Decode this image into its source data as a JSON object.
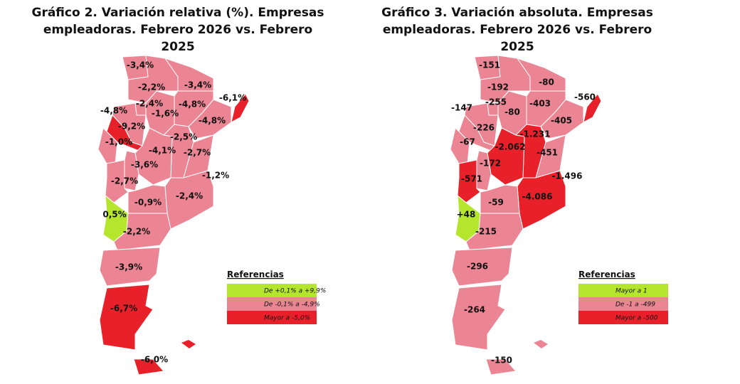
{
  "maps": [
    {
      "title": "Gráfico 2. Variación relativa (%). Empresas empleadoras. Febrero 2026 vs. Febrero 2025",
      "regions": [
        {
          "label": "-3,4%",
          "color": "#eb8493"
        },
        {
          "label": "-2,2%",
          "color": "#eb8493"
        },
        {
          "label": "-3,4%",
          "color": "#eb8493"
        },
        {
          "label": "-6,1%",
          "color": "#e8202a"
        },
        {
          "label": "-2,4%",
          "color": "#eb8493"
        },
        {
          "label": "-4,8%",
          "color": "#eb8493"
        },
        {
          "label": "-1,6%",
          "color": "#eb8493"
        },
        {
          "label": "-4,8%",
          "color": "#eb8493"
        },
        {
          "label": "-4,8%",
          "color": "#eb8493"
        },
        {
          "label": "-9,2%",
          "color": "#e8202a"
        },
        {
          "label": "-2,5%",
          "color": "#eb8493"
        },
        {
          "label": "-1,0%",
          "color": "#eb8493"
        },
        {
          "label": "-4,1%",
          "color": "#eb8493"
        },
        {
          "label": "-2,7%",
          "color": "#eb8493"
        },
        {
          "label": "-3,6%",
          "color": "#eb8493"
        },
        {
          "label": "-1,2%",
          "color": "#eb8493"
        },
        {
          "label": "-2,7%",
          "color": "#eb8493"
        },
        {
          "label": "-2,4%",
          "color": "#eb8493"
        },
        {
          "label": "-0,9%",
          "color": "#eb8493"
        },
        {
          "label": "0,5%",
          "color": "#b5e62d"
        },
        {
          "label": "-2,2%",
          "color": "#eb8493"
        },
        {
          "label": "-3,9%",
          "color": "#eb8493"
        },
        {
          "label": "-6,7%",
          "color": "#e8202a"
        },
        {
          "label": "-6,0%",
          "color": "#e8202a"
        }
      ],
      "legend": {
        "title": "Referencias",
        "items": [
          {
            "label": "De +0,1% a +9,9%",
            "color": "#b5e62d"
          },
          {
            "label": "De -0,1% a -4,9%",
            "color": "#eb8493"
          },
          {
            "label": "Mayor a -5,0%",
            "color": "#e8202a"
          }
        ]
      }
    },
    {
      "title": "Gráfico 3. Variación absoluta. Empresas empleadoras. Febrero 2026 vs. Febrero 2025",
      "regions": [
        {
          "label": "-151",
          "color": "#eb8493"
        },
        {
          "label": "-192",
          "color": "#eb8493"
        },
        {
          "label": "-80",
          "color": "#eb8493"
        },
        {
          "label": "-560",
          "color": "#e8202a"
        },
        {
          "label": "-255",
          "color": "#eb8493"
        },
        {
          "label": "-147",
          "color": "#eb8493"
        },
        {
          "label": "-80",
          "color": "#eb8493"
        },
        {
          "label": "-403",
          "color": "#eb8493"
        },
        {
          "label": "-405",
          "color": "#eb8493"
        },
        {
          "label": "-226",
          "color": "#eb8493"
        },
        {
          "label": "-1.231",
          "color": "#e8202a"
        },
        {
          "label": "-67",
          "color": "#eb8493"
        },
        {
          "label": "-2.062",
          "color": "#e8202a"
        },
        {
          "label": "-451",
          "color": "#eb8493"
        },
        {
          "label": "-172",
          "color": "#eb8493"
        },
        {
          "label": "-1.496",
          "color": "#e8202a"
        },
        {
          "label": "-571",
          "color": "#e8202a"
        },
        {
          "label": "-4.086",
          "color": "#e8202a"
        },
        {
          "label": "-59",
          "color": "#eb8493"
        },
        {
          "label": "+48",
          "color": "#b5e62d"
        },
        {
          "label": "-215",
          "color": "#eb8493"
        },
        {
          "label": "-296",
          "color": "#eb8493"
        },
        {
          "label": "-264",
          "color": "#eb8493"
        },
        {
          "label": "-150",
          "color": "#eb8493"
        }
      ],
      "legend": {
        "title": "Referencias",
        "items": [
          {
            "label": "Mayor a 1",
            "color": "#b5e62d"
          },
          {
            "label": "De -1 a -499",
            "color": "#eb8493"
          },
          {
            "label": "Mayor a -500",
            "color": "#e8202a"
          }
        ]
      }
    }
  ]
}
